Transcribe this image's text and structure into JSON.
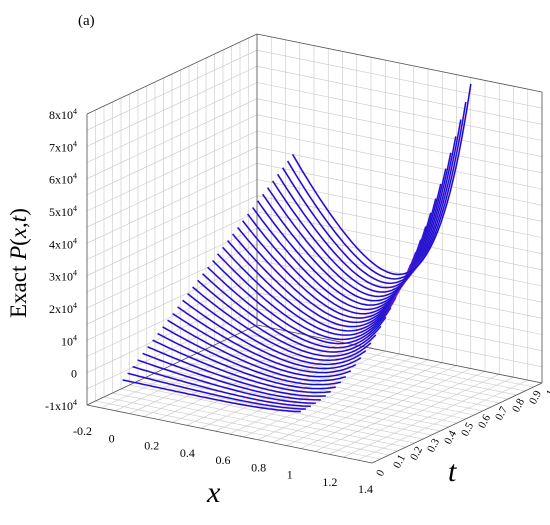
{
  "panel_label": "(a)",
  "chart_data": {
    "type": "surface",
    "zlabel": "Exact P(x,t)",
    "zlabel_parts": {
      "prefix": "Exact ",
      "func": "P",
      "open": "(",
      "arg1": "x",
      "comma": ",",
      "arg2": "t",
      "close": ")"
    },
    "xlabel": "x",
    "ylabel": "t",
    "x_ticks": [
      "-0.2",
      "0",
      "0.2",
      "0.4",
      "0.6",
      "0.8",
      "1",
      "1.2",
      "1.4"
    ],
    "t_ticks": [
      "0",
      "0.1",
      "0.2",
      "0.3",
      "0.4",
      "0.5",
      "0.6",
      "0.7",
      "0.8",
      "0.9",
      "1"
    ],
    "z_ticks": [
      {
        "base": "-1x10",
        "exp": "4"
      },
      {
        "base": "0",
        "exp": ""
      },
      {
        "base": "10",
        "exp": "4"
      },
      {
        "base": "2x10",
        "exp": "4"
      },
      {
        "base": "3x10",
        "exp": "4"
      },
      {
        "base": "4x10",
        "exp": "4"
      },
      {
        "base": "5x10",
        "exp": "4"
      },
      {
        "base": "6x10",
        "exp": "4"
      },
      {
        "base": "7x10",
        "exp": "4"
      },
      {
        "base": "8x10",
        "exp": "4"
      }
    ],
    "x_range": [
      -0.2,
      1.4
    ],
    "t_range": [
      0,
      1
    ],
    "z_range": [
      -10000,
      80000
    ],
    "x_domain": [
      0,
      1
    ],
    "curve_count": 35,
    "line_color": "#1010d0",
    "highlight_color": "#e040e0",
    "grid": true,
    "series_description_values": {
      "endpoint_x1_t0": 2000,
      "endpoint_x1_t1": 78000,
      "endpoint_x0_t1": 45000,
      "minimum_t1": 14000
    }
  }
}
